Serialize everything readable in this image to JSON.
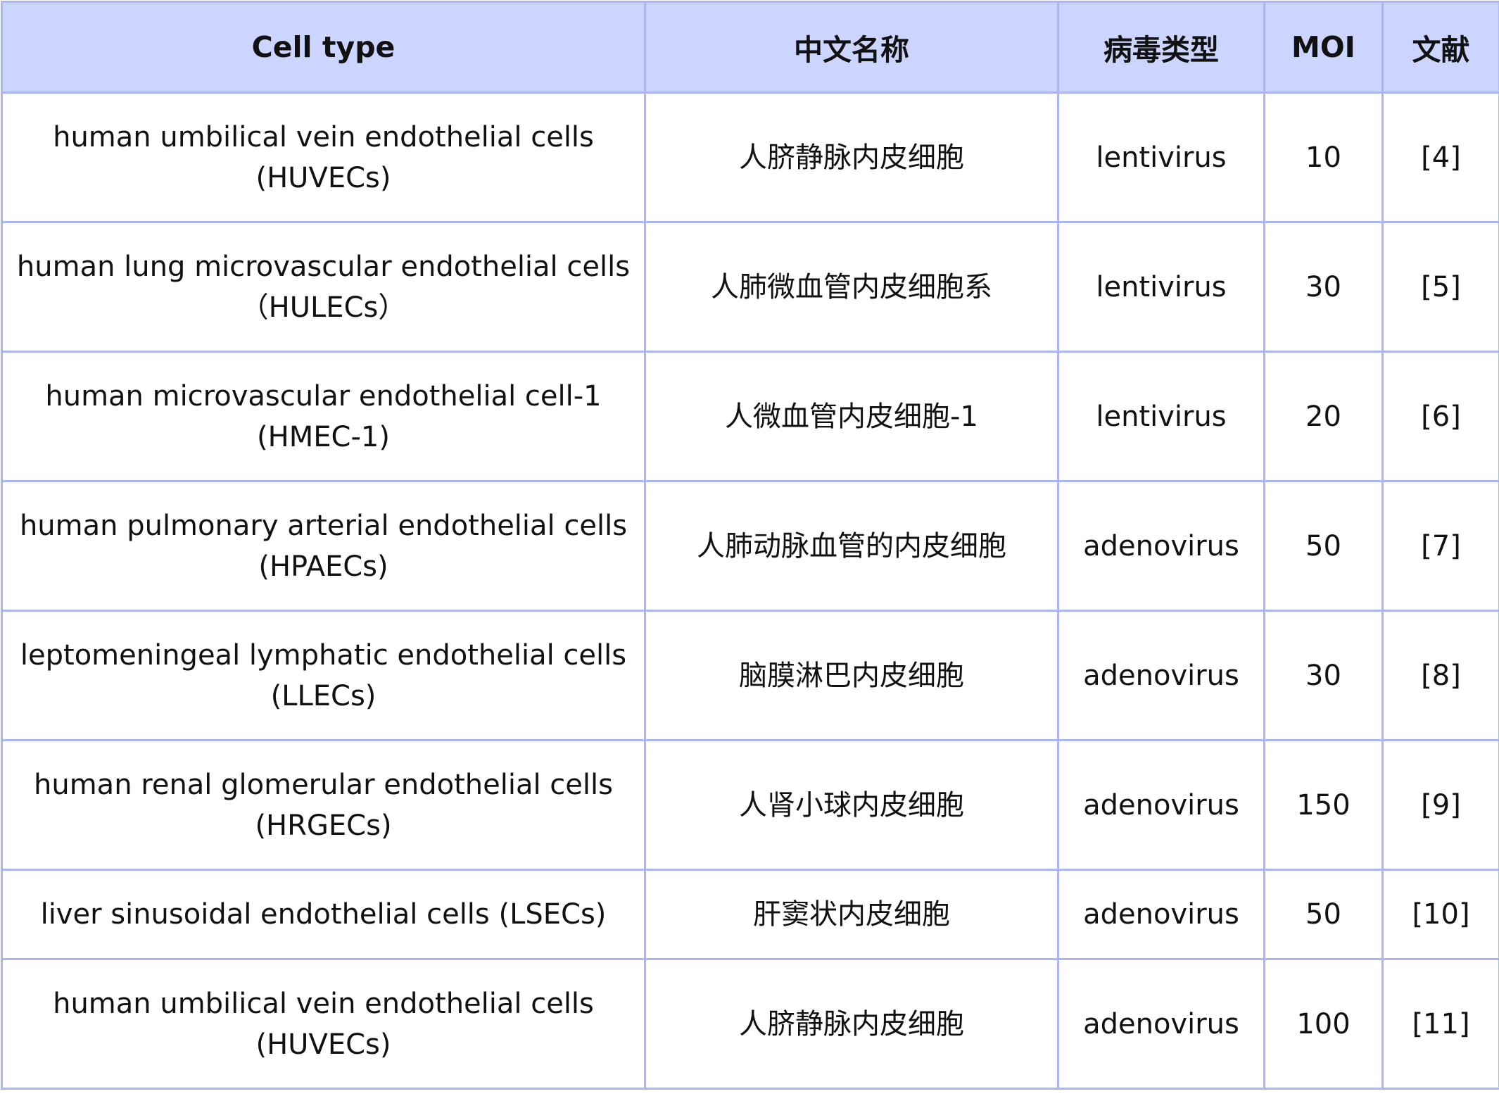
{
  "headers": [
    "Cell type",
    "中文名称",
    "病毒类型",
    "MOI",
    "文献"
  ],
  "rows": [
    {
      "cell_type": "human umbilical vein endothelial cells (HUVECs)",
      "chinese": "人脐静脉内皮细胞",
      "virus": "lentivirus",
      "moi": "10",
      "ref": "[4]"
    },
    {
      "cell_type": "human lung microvascular endothelial cells（HULECs）",
      "chinese": "人肺微血管内皮细胞系",
      "virus": "lentivirus",
      "moi": "30",
      "ref": "[5]"
    },
    {
      "cell_type": "human microvascular endothelial cell-1 (HMEC-1)",
      "chinese": "人微血管内皮细胞-1",
      "virus": "lentivirus",
      "moi": "20",
      "ref": "[6]"
    },
    {
      "cell_type": "human pulmonary arterial endothelial cells (HPAECs)",
      "chinese": "人肺动脉血管的内皮细胞",
      "virus": "adenovirus",
      "moi": "50",
      "ref": "[7]"
    },
    {
      "cell_type": "leptomeningeal lymphatic endothelial cells (LLECs)",
      "chinese": "脑膜淋巴内皮细胞",
      "virus": "adenovirus",
      "moi": "30",
      "ref": "[8]"
    },
    {
      "cell_type": "human renal glomerular endothelial cells (HRGECs)",
      "chinese": "人肾小球内皮细胞",
      "virus": "adenovirus",
      "moi": "150",
      "ref": "[9]"
    },
    {
      "cell_type": "liver sinusoidal endothelial cells (LSECs)",
      "chinese": "肝窦状内皮细胞",
      "virus": "adenovirus",
      "moi": "50",
      "ref": "[10]"
    },
    {
      "cell_type": "human umbilical vein endothelial cells (HUVECs)",
      "chinese": "人脐静脉内皮细胞",
      "virus": "adenovirus",
      "moi": "100",
      "ref": "[11]"
    }
  ]
}
